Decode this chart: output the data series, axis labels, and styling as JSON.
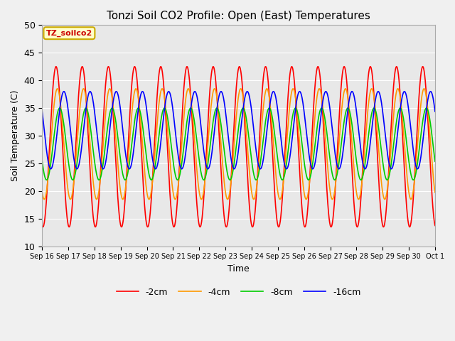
{
  "title": "Tonzi Soil CO2 Profile: Open (East) Temperatures",
  "xlabel": "Time",
  "ylabel": "Soil Temperature (C)",
  "ylim": [
    10,
    50
  ],
  "annotation_text": "TZ_soilco2",
  "annotation_color": "#cc0000",
  "annotation_bg": "#ffffcc",
  "annotation_border": "#ccaa00",
  "series_colors": [
    "#ff0000",
    "#ff9900",
    "#00cc00",
    "#0000ff"
  ],
  "series_labels": [
    "-2cm",
    "-4cm",
    "-8cm",
    "-16cm"
  ],
  "series_lw": [
    1.2,
    1.2,
    1.2,
    1.2
  ],
  "bg_color": "#e8e8e8",
  "grid_color": "#ffffff",
  "n_days": 15,
  "tick_labels": [
    "Sep 16",
    "Sep 17",
    "Sep 18",
    "Sep 19",
    "Sep 20",
    "Sep 21",
    "Sep 22",
    "Sep 23",
    "Sep 24",
    "Sep 25",
    "Sep 26",
    "Sep 27",
    "Sep 28",
    "Sep 29",
    "Sep 30",
    "Oct 1"
  ],
  "figsize": [
    6.4,
    4.8
  ],
  "dpi": 100
}
